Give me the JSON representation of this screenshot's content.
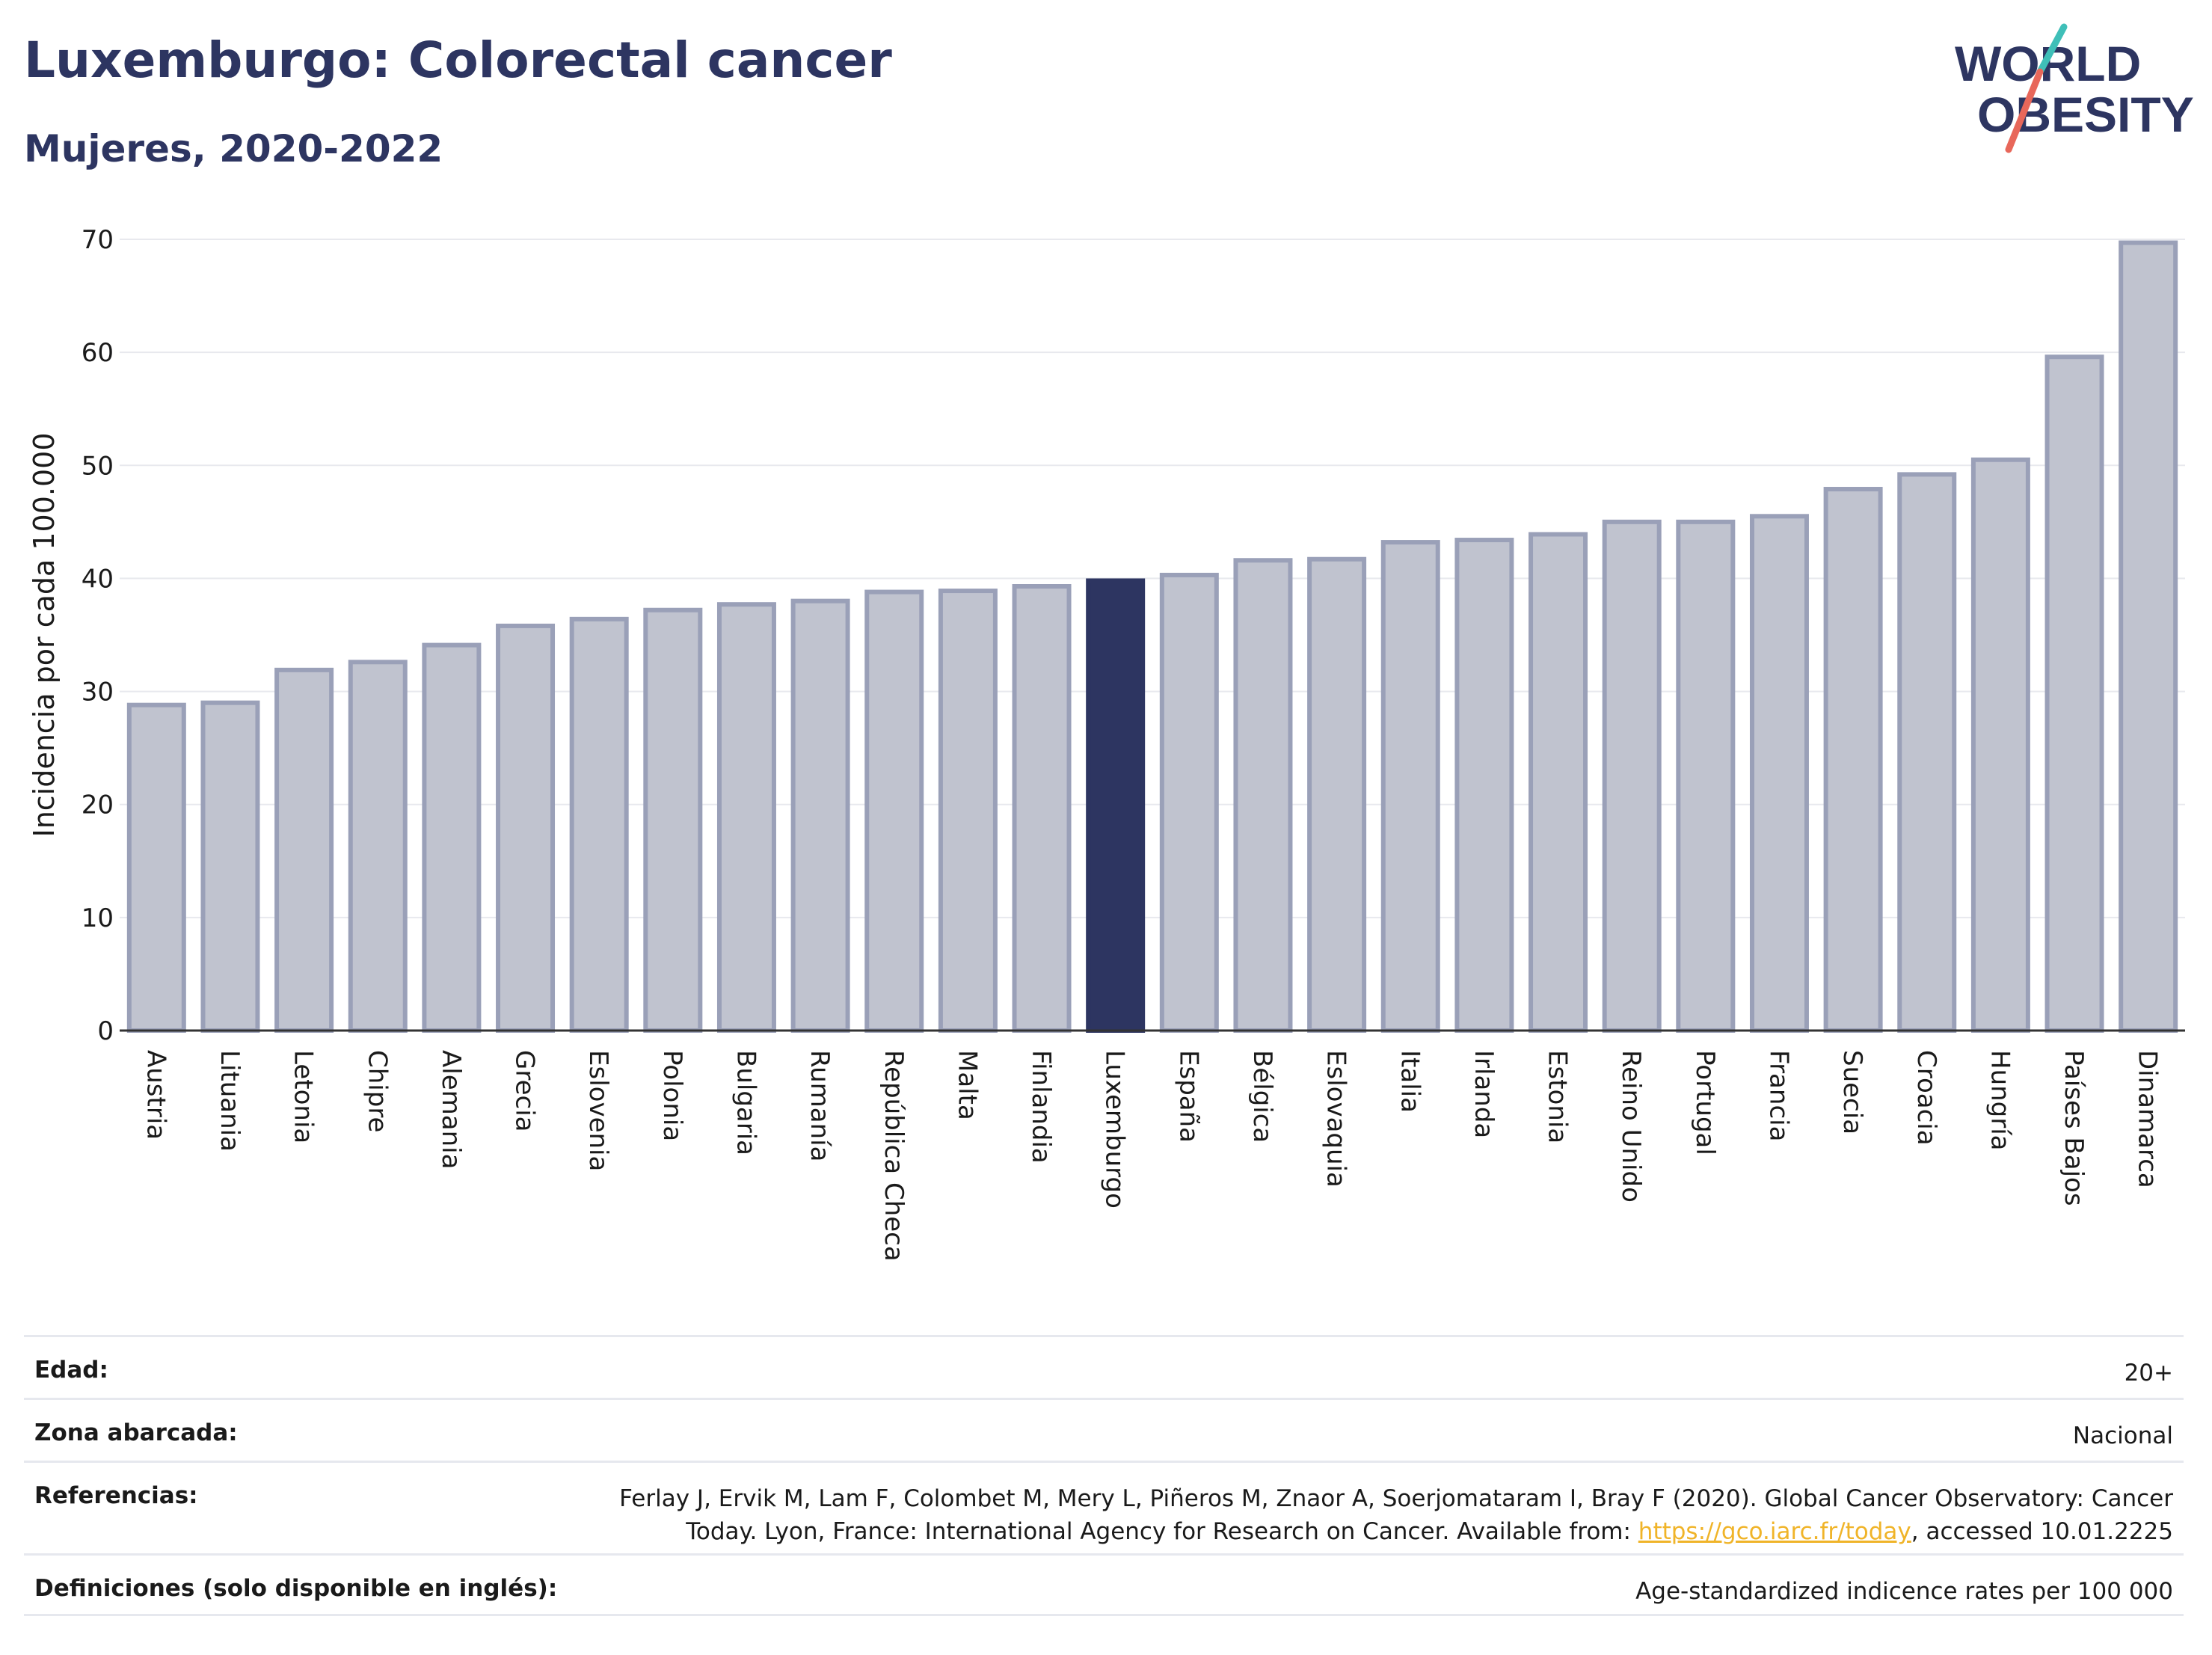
{
  "header": {
    "title": "Luxemburgo: Colorectal cancer",
    "subtitle": "Mujeres, 2020-2022"
  },
  "logo": {
    "line1": "WORLD",
    "line2": "OBESITY"
  },
  "colors": {
    "highlight": "#2d3561",
    "bar": "#c0c3cf",
    "bar_edge": "#9aa0b8",
    "title": "#2d3561",
    "accent_teal": "#3fbfb8",
    "accent_red": "#e8675a",
    "link": "#f0b429"
  },
  "chart_data": {
    "type": "bar",
    "title": "Luxemburgo: Colorectal cancer",
    "subtitle": "Mujeres, 2020-2022",
    "xlabel": "",
    "ylabel": "Incidencia por cada 100.000",
    "ylim": [
      0,
      70
    ],
    "yticks": [
      0,
      10,
      20,
      30,
      40,
      50,
      60,
      70
    ],
    "grid": true,
    "highlight": "Luxemburgo",
    "categories": [
      "Austria",
      "Lituania",
      "Letonia",
      "Chipre",
      "Alemania",
      "Grecia",
      "Eslovenia",
      "Polonia",
      "Bulgaria",
      "Rumanía",
      "República Checa",
      "Malta",
      "Finlandia",
      "Luxemburgo",
      "España",
      "Bélgica",
      "Eslovaquia",
      "Italia",
      "Irlanda",
      "Estonia",
      "Reino Unido",
      "Portugal",
      "Francia",
      "Suecia",
      "Croacia",
      "Hungría",
      "Países Bajos",
      "Dinamarca"
    ],
    "values": [
      28.8,
      29.0,
      31.9,
      32.6,
      34.1,
      35.8,
      36.4,
      37.2,
      37.7,
      38.0,
      38.8,
      38.9,
      39.3,
      39.8,
      40.3,
      41.6,
      41.7,
      43.2,
      43.4,
      43.9,
      45.0,
      45.0,
      45.5,
      47.9,
      49.2,
      50.5,
      59.6,
      69.7
    ]
  },
  "meta": {
    "age_label": "Edad:",
    "age_value": "20+",
    "zone_label": "Zona abarcada:",
    "zone_value": "Nacional",
    "ref_label": "Referencias:",
    "ref_text_1": "Ferlay J, Ervik M, Lam F, Colombet M, Mery L, Piñeros M, Znaor A, Soerjomataram I, Bray F (2020). Global Cancer Observatory: Cancer Today. Lyon, France: International Agency for Research on Cancer. Available from: ",
    "ref_link": "https://gco.iarc.fr/today",
    "ref_text_2": ", accessed 10.01.2225",
    "def_label": "Definiciones (solo disponible en inglés):",
    "def_value": "Age-standardized indicence rates per 100 000"
  }
}
